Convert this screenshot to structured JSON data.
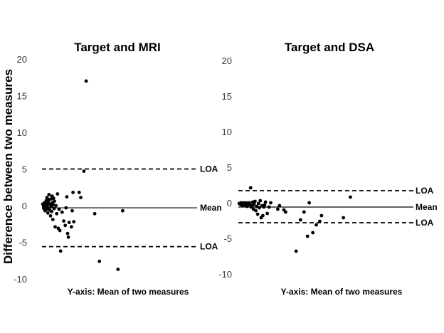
{
  "ylabel": "Difference between two measures",
  "chart_data": [
    {
      "type": "scatter",
      "title": "Target and MRI",
      "xlabel": "Y-axis: Mean of two measures",
      "ylim": [
        -10,
        20
      ],
      "yticks": [
        -10,
        -5,
        0,
        5,
        10,
        15,
        20
      ],
      "xlim": [
        0,
        10
      ],
      "reference_lines": [
        {
          "label": "LOA",
          "value": 5.1,
          "style": "dashed"
        },
        {
          "label": "Mean",
          "value": -0.2,
          "style": "solid"
        },
        {
          "label": "LOA",
          "value": -5.5,
          "style": "dashed"
        }
      ],
      "points": [
        {
          "x": 0.05,
          "y": 0.3
        },
        {
          "x": 0.1,
          "y": 0.0
        },
        {
          "x": 0.12,
          "y": -0.3
        },
        {
          "x": 0.15,
          "y": 0.5
        },
        {
          "x": 0.18,
          "y": 0.1
        },
        {
          "x": 0.2,
          "y": -0.6
        },
        {
          "x": 0.22,
          "y": 0.4
        },
        {
          "x": 0.25,
          "y": -0.1
        },
        {
          "x": 0.28,
          "y": 0.8
        },
        {
          "x": 0.3,
          "y": -0.4
        },
        {
          "x": 0.32,
          "y": 1.2
        },
        {
          "x": 0.35,
          "y": 0.2
        },
        {
          "x": 0.38,
          "y": -0.9
        },
        {
          "x": 0.4,
          "y": 0.6
        },
        {
          "x": 0.42,
          "y": -0.2
        },
        {
          "x": 0.45,
          "y": 1.6
        },
        {
          "x": 0.47,
          "y": 0.9
        },
        {
          "x": 0.5,
          "y": -0.5
        },
        {
          "x": 0.52,
          "y": 0.3
        },
        {
          "x": 0.55,
          "y": -1.3
        },
        {
          "x": 0.58,
          "y": 1.0
        },
        {
          "x": 0.6,
          "y": 0.0
        },
        {
          "x": 0.62,
          "y": -0.7
        },
        {
          "x": 0.65,
          "y": 1.4
        },
        {
          "x": 0.68,
          "y": 0.5
        },
        {
          "x": 0.7,
          "y": -1.8
        },
        {
          "x": 0.72,
          "y": 0.2
        },
        {
          "x": 0.75,
          "y": 1.1
        },
        {
          "x": 0.78,
          "y": -0.3
        },
        {
          "x": 0.8,
          "y": 0.7
        },
        {
          "x": 0.85,
          "y": -2.8
        },
        {
          "x": 0.9,
          "y": 0.1
        },
        {
          "x": 0.95,
          "y": -1.0
        },
        {
          "x": 1.0,
          "y": 1.7
        },
        {
          "x": 1.05,
          "y": -3.0
        },
        {
          "x": 1.1,
          "y": -0.4
        },
        {
          "x": 1.15,
          "y": -3.3
        },
        {
          "x": 1.2,
          "y": -6.1
        },
        {
          "x": 1.3,
          "y": -0.8
        },
        {
          "x": 1.4,
          "y": -2.0
        },
        {
          "x": 1.5,
          "y": -2.6
        },
        {
          "x": 1.55,
          "y": -0.2
        },
        {
          "x": 1.6,
          "y": 1.3
        },
        {
          "x": 1.65,
          "y": -3.7
        },
        {
          "x": 1.7,
          "y": -4.2
        },
        {
          "x": 1.75,
          "y": -2.2
        },
        {
          "x": 1.9,
          "y": -2.8
        },
        {
          "x": 1.95,
          "y": -0.6
        },
        {
          "x": 2.0,
          "y": 1.9
        },
        {
          "x": 2.05,
          "y": -2.1
        },
        {
          "x": 2.4,
          "y": 1.9
        },
        {
          "x": 2.5,
          "y": 1.2
        },
        {
          "x": 2.7,
          "y": 4.8
        },
        {
          "x": 2.85,
          "y": 17.1
        },
        {
          "x": 3.4,
          "y": -1.0
        },
        {
          "x": 3.7,
          "y": -7.5
        },
        {
          "x": 4.9,
          "y": -8.6
        },
        {
          "x": 5.2,
          "y": -0.6
        }
      ]
    },
    {
      "type": "scatter",
      "title": "Target and DSA",
      "xlabel": "Y-axis: Mean of two measures",
      "ylim": [
        -10,
        20
      ],
      "yticks": [
        -10,
        -5,
        0,
        5,
        10,
        15,
        20
      ],
      "xlim": [
        0,
        10
      ],
      "reference_lines": [
        {
          "label": "LOA",
          "value": 1.8,
          "style": "dashed"
        },
        {
          "label": "Mean",
          "value": -0.5,
          "style": "solid"
        },
        {
          "label": "LOA",
          "value": -2.7,
          "style": "dashed"
        }
      ],
      "points": [
        {
          "x": 0.05,
          "y": 0.0
        },
        {
          "x": 0.1,
          "y": -0.1
        },
        {
          "x": 0.15,
          "y": 0.1
        },
        {
          "x": 0.18,
          "y": -0.2
        },
        {
          "x": 0.22,
          "y": 0.0
        },
        {
          "x": 0.26,
          "y": -0.3
        },
        {
          "x": 0.3,
          "y": 0.1
        },
        {
          "x": 0.34,
          "y": -0.1
        },
        {
          "x": 0.38,
          "y": 0.0
        },
        {
          "x": 0.42,
          "y": -0.2
        },
        {
          "x": 0.46,
          "y": 0.1
        },
        {
          "x": 0.5,
          "y": -0.4
        },
        {
          "x": 0.54,
          "y": 0.0
        },
        {
          "x": 0.58,
          "y": -0.2
        },
        {
          "x": 0.62,
          "y": 0.1
        },
        {
          "x": 0.66,
          "y": -0.1
        },
        {
          "x": 0.7,
          "y": 2.2
        },
        {
          "x": 0.74,
          "y": -0.5
        },
        {
          "x": 0.78,
          "y": -0.3
        },
        {
          "x": 0.82,
          "y": 0.2
        },
        {
          "x": 0.86,
          "y": -0.8
        },
        {
          "x": 0.9,
          "y": -0.1
        },
        {
          "x": 0.95,
          "y": 0.3
        },
        {
          "x": 1.0,
          "y": -1.0
        },
        {
          "x": 1.05,
          "y": -0.4
        },
        {
          "x": 1.1,
          "y": -1.5
        },
        {
          "x": 1.15,
          "y": 0.0
        },
        {
          "x": 1.2,
          "y": -0.6
        },
        {
          "x": 1.25,
          "y": 0.4
        },
        {
          "x": 1.3,
          "y": -2.0
        },
        {
          "x": 1.35,
          "y": -0.3
        },
        {
          "x": 1.4,
          "y": -1.7
        },
        {
          "x": 1.45,
          "y": -0.5
        },
        {
          "x": 1.5,
          "y": -0.2
        },
        {
          "x": 1.55,
          "y": 0.2
        },
        {
          "x": 1.65,
          "y": -1.4
        },
        {
          "x": 1.75,
          "y": -0.5
        },
        {
          "x": 1.85,
          "y": 0.1
        },
        {
          "x": 2.25,
          "y": -0.8
        },
        {
          "x": 2.35,
          "y": -0.3
        },
        {
          "x": 2.6,
          "y": -0.9
        },
        {
          "x": 2.7,
          "y": -1.2
        },
        {
          "x": 3.3,
          "y": -6.7
        },
        {
          "x": 3.55,
          "y": -2.3
        },
        {
          "x": 3.75,
          "y": -1.2
        },
        {
          "x": 3.95,
          "y": -4.6
        },
        {
          "x": 4.05,
          "y": 0.1
        },
        {
          "x": 4.25,
          "y": -4.1
        },
        {
          "x": 4.45,
          "y": -3.0
        },
        {
          "x": 4.65,
          "y": -2.5
        },
        {
          "x": 4.75,
          "y": -1.7
        },
        {
          "x": 6.0,
          "y": -2.0
        },
        {
          "x": 6.4,
          "y": 0.9
        }
      ]
    }
  ]
}
